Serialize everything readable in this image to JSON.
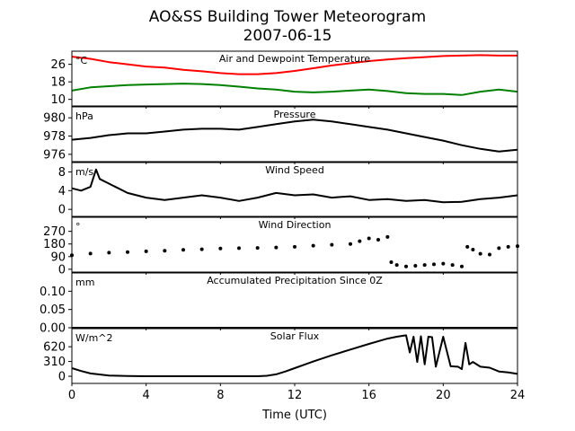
{
  "chart_data": {
    "type": "line",
    "title": "AO&SS Building Tower Meteorogram",
    "subtitle": "2007-06-15",
    "xlabel": "Time (UTC)",
    "x_ticks": [
      "0",
      "4",
      "8",
      "12",
      "16",
      "20",
      "24"
    ],
    "xlim": [
      0,
      24
    ],
    "panels": [
      {
        "title": "Air and Dewpoint Temperature",
        "unit": "°C",
        "ylim": [
          7,
          32
        ],
        "yticks": [
          "10",
          "18",
          "26"
        ],
        "yticks_values": [
          10,
          18,
          26
        ],
        "series": [
          {
            "color": "#ff0000",
            "style": "line",
            "x": [
              0,
              1,
              2,
              3,
              4,
              5,
              6,
              7,
              8,
              9,
              10,
              11,
              12,
              13,
              14,
              15,
              16,
              17,
              18,
              19,
              20,
              21,
              22,
              23,
              24
            ],
            "y": [
              29.5,
              28.5,
              27,
              26,
              25,
              24.5,
              23.5,
              22.8,
              22,
              21.5,
              21.5,
              22,
              23,
              24.2,
              25.5,
              26.5,
              27.5,
              28.2,
              28.8,
              29.3,
              29.8,
              30,
              30.2,
              30,
              30
            ]
          },
          {
            "color": "#008000",
            "style": "line",
            "x": [
              0,
              1,
              2,
              3,
              4,
              5,
              6,
              7,
              8,
              9,
              10,
              11,
              12,
              13,
              14,
              15,
              16,
              17,
              18,
              19,
              20,
              21,
              22,
              23,
              24
            ],
            "y": [
              14,
              15.5,
              16,
              16.5,
              16.8,
              17,
              17.2,
              17,
              16.5,
              15.8,
              15,
              14.5,
              13.5,
              13.2,
              13.5,
              14,
              14.5,
              13.8,
              12.8,
              12.5,
              12.5,
              12,
              13.5,
              14.5,
              13.5
            ]
          }
        ]
      },
      {
        "title": "Pressure",
        "unit": "hPa",
        "ylim": [
          975.2,
          981.2
        ],
        "yticks": [
          "976",
          "978",
          "980"
        ],
        "yticks_values": [
          976,
          978,
          980
        ],
        "series": [
          {
            "color": "#000000",
            "style": "line",
            "x": [
              0,
              1,
              2,
              3,
              4,
              5,
              6,
              7,
              8,
              9,
              10,
              11,
              12,
              13,
              14,
              15,
              16,
              17,
              18,
              19,
              20,
              21,
              22,
              23,
              24
            ],
            "y": [
              977.6,
              977.8,
              978.1,
              978.3,
              978.3,
              978.5,
              978.7,
              978.8,
              978.8,
              978.7,
              979,
              979.3,
              979.6,
              979.8,
              979.6,
              979.3,
              979,
              978.7,
              978.3,
              977.9,
              977.5,
              977,
              976.6,
              976.3,
              976.5
            ]
          }
        ]
      },
      {
        "title": "Wind Speed",
        "unit": "m/s",
        "ylim": [
          -1.5,
          10
        ],
        "yticks": [
          "0",
          "4",
          "8"
        ],
        "yticks_values": [
          0,
          4,
          8
        ],
        "series": [
          {
            "color": "#000000",
            "style": "line",
            "x": [
              0,
              0.5,
              1,
              1.3,
              1.5,
              2,
              2.5,
              3,
              3.5,
              4,
              5,
              6,
              7,
              8,
              9,
              10,
              11,
              12,
              13,
              14,
              15,
              16,
              17,
              18,
              19,
              20,
              21,
              22,
              23,
              24
            ],
            "y": [
              4.5,
              4,
              4.8,
              8.5,
              6.5,
              5.5,
              4.5,
              3.5,
              3,
              2.5,
              2,
              2.5,
              3,
              2.5,
              1.8,
              2.5,
              3.5,
              3,
              3.2,
              2.5,
              2.8,
              2,
              2.2,
              1.8,
              2,
              1.5,
              1.6,
              2.2,
              2.5,
              3
            ]
          }
        ]
      },
      {
        "title": "Wind Direction",
        "unit": "°",
        "ylim": [
          -20,
          370
        ],
        "yticks": [
          "0",
          "90",
          "180",
          "270"
        ],
        "yticks_values": [
          0,
          90,
          180,
          270
        ],
        "series": [
          {
            "color": "#000000",
            "style": "points",
            "x": [
              0,
              1,
              2,
              3,
              4,
              5,
              6,
              7,
              8,
              9,
              10,
              11,
              12,
              13,
              14,
              15,
              15.5,
              16,
              16.5,
              17,
              17.2,
              17.5,
              18,
              18.5,
              19,
              19.5,
              20,
              20.5,
              21,
              21.3,
              21.6,
              22,
              22.5,
              23,
              23.5,
              24
            ],
            "y": [
              100,
              112,
              118,
              122,
              128,
              132,
              138,
              142,
              148,
              150,
              152,
              155,
              160,
              168,
              174,
              180,
              200,
              220,
              210,
              230,
              50,
              30,
              20,
              25,
              30,
              35,
              40,
              30,
              20,
              160,
              140,
              110,
              105,
              150,
              160,
              165
            ]
          }
        ]
      },
      {
        "title": "Accumulated Precipitation Since 0Z",
        "unit": "mm",
        "ylim": [
          0,
          0.15
        ],
        "yticks": [
          "0.00",
          "0.05",
          "0.10"
        ],
        "yticks_values": [
          0,
          0.05,
          0.1
        ],
        "series": [
          {
            "color": "#000000",
            "style": "line",
            "x": [
              0,
              24
            ],
            "y": [
              0,
              0
            ]
          }
        ]
      },
      {
        "title": "Solar Flux",
        "unit": "W/m^2",
        "ylim": [
          -150,
          1000
        ],
        "yticks": [
          "0",
          "310",
          "620"
        ],
        "yticks_values": [
          0,
          310,
          620
        ],
        "series": [
          {
            "color": "#000000",
            "style": "line",
            "x": [
              0,
              0.5,
              1,
              2,
              3,
              4,
              5,
              6,
              7,
              8,
              9,
              10,
              10.5,
              11,
              11.5,
              12,
              12.5,
              13,
              14,
              15,
              16,
              17,
              17.5,
              18,
              18.2,
              18.4,
              18.6,
              18.8,
              19,
              19.2,
              19.4,
              19.6,
              20,
              20.4,
              20.8,
              21,
              21.2,
              21.4,
              21.6,
              22,
              22.5,
              23,
              23.5,
              24
            ],
            "y": [
              170,
              110,
              60,
              15,
              5,
              0,
              0,
              0,
              0,
              0,
              0,
              0,
              10,
              40,
              100,
              170,
              240,
              310,
              440,
              560,
              680,
              790,
              830,
              860,
              500,
              830,
              300,
              840,
              250,
              830,
              820,
              200,
              830,
              210,
              200,
              150,
              700,
              250,
              300,
              200,
              180,
              100,
              80,
              50
            ]
          }
        ]
      }
    ]
  }
}
